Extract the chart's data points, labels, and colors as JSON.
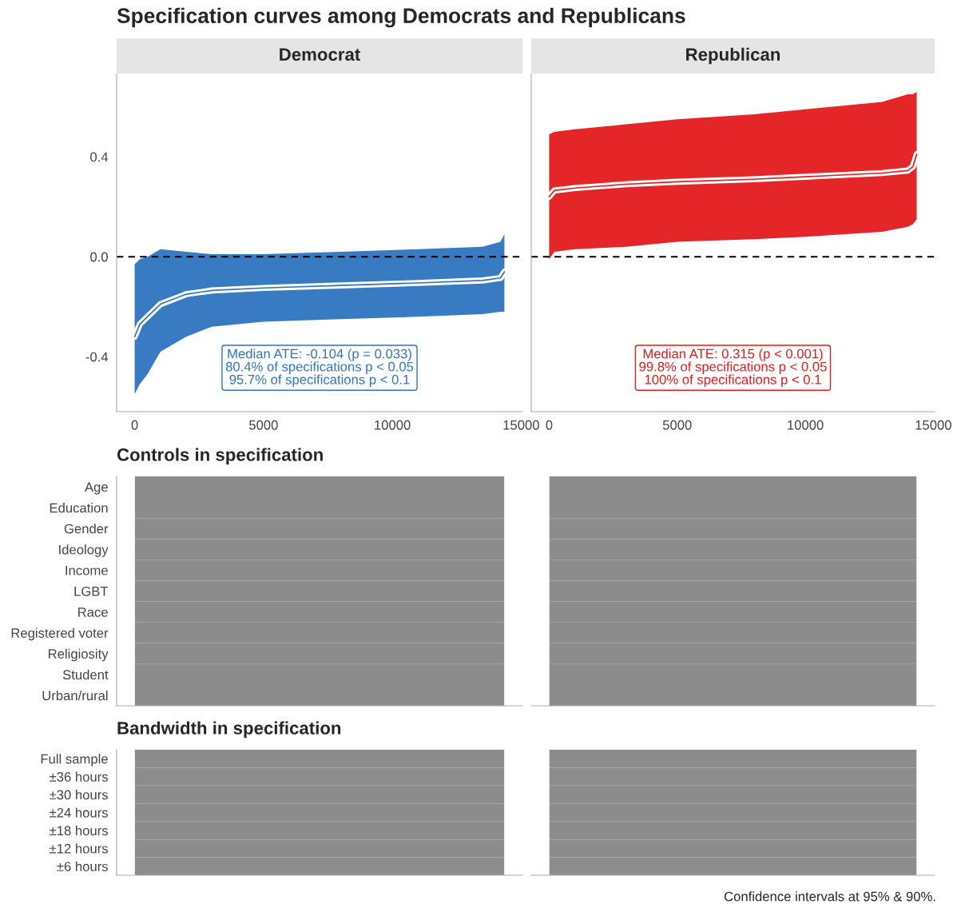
{
  "chart_data": [
    {
      "type": "line",
      "title": "Specification curves among Democrats and Republicans",
      "subtitle": "Democrat",
      "x": [
        0,
        200,
        500,
        1000,
        2000,
        3000,
        5000,
        8000,
        11000,
        13500,
        14200,
        14350
      ],
      "series": [
        {
          "color": "#2e74c0",
          "values": [
            -0.32,
            -0.27,
            -0.24,
            -0.19,
            -0.15,
            -0.135,
            -0.125,
            -0.115,
            -0.105,
            -0.095,
            -0.085,
            -0.06
          ],
          "lower": [
            -0.55,
            -0.51,
            -0.47,
            -0.38,
            -0.32,
            -0.28,
            -0.26,
            -0.25,
            -0.24,
            -0.23,
            -0.22,
            -0.22
          ],
          "upper": [
            -0.03,
            -0.01,
            0.0,
            0.03,
            0.02,
            0.01,
            0.01,
            0.02,
            0.03,
            0.04,
            0.06,
            0.09
          ]
        }
      ],
      "xlim": [
        -700,
        15050
      ],
      "ylim": [
        -0.62,
        0.73
      ],
      "xticks": [
        0,
        5000,
        10000,
        15000
      ],
      "yticks": [
        -0.4,
        {
          "value": 0,
          "label": "0.0"
        },
        0.4
      ],
      "ref_lines": [
        {
          "axis": "y",
          "value": 0,
          "color": "#000000",
          "line_style": "dashed"
        }
      ],
      "annotations": [
        "Median ATE: -0.104 (p = 0.033)\n80.4% of specifications p < 0.05\n95.7% of specifications p < 0.1"
      ],
      "grid": false
    },
    {
      "type": "line",
      "subtitle": "Republican",
      "x": [
        0,
        200,
        1000,
        3000,
        5000,
        8000,
        10000,
        13000,
        14000,
        14200,
        14350
      ],
      "series": [
        {
          "color": "#e41a1c",
          "values": [
            0.24,
            0.265,
            0.275,
            0.29,
            0.3,
            0.31,
            0.32,
            0.335,
            0.345,
            0.36,
            0.41
          ],
          "lower": [
            -0.01,
            0.02,
            0.03,
            0.04,
            0.06,
            0.07,
            0.08,
            0.1,
            0.12,
            0.13,
            0.15
          ],
          "upper": [
            0.49,
            0.5,
            0.51,
            0.53,
            0.55,
            0.57,
            0.59,
            0.62,
            0.65,
            0.65,
            0.66
          ]
        }
      ],
      "xlim": [
        -700,
        15050
      ],
      "ylim": [
        -0.62,
        0.73
      ],
      "xticks": [
        0,
        5000,
        10000,
        15000
      ],
      "tick_labels": "x",
      "ref_lines": [
        {
          "axis": "y",
          "value": 0,
          "color": "#000000",
          "line_style": "dashed"
        }
      ],
      "annotations": [
        "Median ATE: 0.315 (p < 0.001)\n99.8% of specifications p < 0.05\n100% of specifications p < 0.1"
      ],
      "grid": false
    },
    {
      "type": "other",
      "title": "Controls in specification",
      "y_categories": [
        "Age",
        "Education",
        "Gender",
        "Ideology",
        "Income",
        "LGBT",
        "Race",
        "Registered voter",
        "Religiosity",
        "Student",
        "Urban/rural"
      ]
    },
    {
      "type": "other",
      "title": "Bandwidth in specification",
      "y_categories": [
        "Full sample",
        "±36 hours",
        "±30 hours",
        "±24 hours",
        "±18 hours",
        "±12 hours",
        "±6 hours"
      ],
      "annotations": [
        "Confidence intervals at 95% & 90%."
      ]
    }
  ]
}
